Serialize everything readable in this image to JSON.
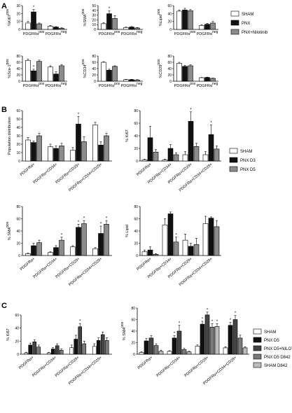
{
  "panels": {
    "A": "A",
    "B": "B",
    "C": "C"
  },
  "colors": {
    "black": "#111111",
    "white": "#ffffff",
    "gray": "#8c8c8c",
    "dark_gray": "#444444",
    "mid_gray": "#7a7a7a",
    "light_gray": "#bdbdbd"
  },
  "legends": {
    "A": [
      "SHAM",
      "PNX",
      "PNX+Nilotinib"
    ],
    "B": [
      "SHAM",
      "PNX D3",
      "PNX D5"
    ],
    "C": [
      "SHAM",
      "PNX D5",
      "PNX D5+NILOTINIB",
      "PNX D5 D842",
      "SHAM D842"
    ]
  },
  "chart_data": [
    {
      "panel": "A",
      "type": "bar",
      "ylabel": "%Ki67pos",
      "ylim": [
        0,
        30
      ],
      "yticks": [
        0,
        10,
        20,
        30
      ],
      "categories": [
        "PDGFRαpos",
        "PDGFRαneg"
      ],
      "series": [
        {
          "name": "SHAM",
          "values": [
            8,
            4
          ]
        },
        {
          "name": "PNX",
          "values": [
            22,
            3
          ]
        },
        {
          "name": "PNX+Nilotinib",
          "values": [
            7,
            1.5
          ]
        }
      ],
      "errors": [
        [
          2,
          1
        ],
        [
          3,
          0.5
        ],
        [
          1,
          0.5
        ]
      ],
      "stars": [
        [
          0,
          1
        ]
      ]
    },
    {
      "panel": "A",
      "type": "bar",
      "ylabel": "%SMApos",
      "ylim": [
        0,
        50
      ],
      "yticks": [
        0,
        10,
        20,
        30,
        40,
        50
      ],
      "categories": [
        "PDGFRαpos",
        "PDGFRαneg"
      ],
      "series": [
        {
          "name": "SHAM",
          "values": [
            12,
            4
          ]
        },
        {
          "name": "PNX",
          "values": [
            33,
            5
          ]
        },
        {
          "name": "PNX+Nilotinib",
          "values": [
            23,
            3
          ]
        }
      ],
      "errors": [
        [
          2,
          1
        ],
        [
          6,
          1
        ],
        [
          6,
          1
        ]
      ],
      "stars": [
        [
          0,
          1
        ]
      ]
    },
    {
      "panel": "A",
      "type": "bar",
      "ylabel": "%Lipidpos",
      "ylim": [
        0,
        60
      ],
      "yticks": [
        0,
        20,
        40,
        60
      ],
      "categories": [
        "PDGFRαpos",
        "PDGFRαneg"
      ],
      "series": [
        {
          "name": "SHAM",
          "values": [
            46,
            10
          ]
        },
        {
          "name": "PNX",
          "values": [
            49,
            13
          ]
        },
        {
          "name": "PNX+Nilotinib",
          "values": [
            47,
            16
          ]
        }
      ],
      "errors": [
        [
          3,
          2
        ],
        [
          4,
          2
        ],
        [
          3,
          4
        ]
      ],
      "stars": []
    },
    {
      "panel": "A",
      "type": "bar",
      "ylabel": "%Sca-1pos",
      "ylim": [
        0,
        80
      ],
      "yticks": [
        0,
        20,
        40,
        60,
        80
      ],
      "categories": [
        "PDGFRαpos",
        "PDGFRαneg"
      ],
      "series": [
        {
          "name": "SHAM",
          "values": [
            66,
            45
          ]
        },
        {
          "name": "PNX",
          "values": [
            33,
            23
          ]
        },
        {
          "name": "PNX+Nilotinib",
          "values": [
            63,
            49
          ]
        }
      ],
      "errors": [
        [
          4,
          4
        ],
        [
          5,
          7
        ],
        [
          4,
          4
        ]
      ],
      "stars": [
        [
          0,
          1
        ]
      ]
    },
    {
      "panel": "A",
      "type": "bar",
      "ylabel": "%CD34pos",
      "ylim": [
        0,
        80
      ],
      "yticks": [
        0,
        20,
        40,
        60,
        80
      ],
      "categories": [
        "PDGFRαpos",
        "PDGFRαneg"
      ],
      "series": [
        {
          "name": "SHAM",
          "values": [
            60,
            5
          ]
        },
        {
          "name": "PNX",
          "values": [
            35,
            5
          ]
        },
        {
          "name": "PNX+Nilotinib",
          "values": [
            47,
            4
          ]
        }
      ],
      "errors": [
        [
          2,
          1
        ],
        [
          3,
          1
        ],
        [
          2,
          1
        ]
      ],
      "stars": []
    },
    {
      "panel": "A",
      "type": "bar",
      "ylabel": "%CD29pos",
      "ylim": [
        0,
        80
      ],
      "yticks": [
        0,
        20,
        40,
        60,
        80
      ],
      "categories": [
        "PDGFRαpos",
        "PDGFRαneg"
      ],
      "series": [
        {
          "name": "SHAM",
          "values": [
            57,
            11
          ]
        },
        {
          "name": "PNX",
          "values": [
            47,
            12
          ]
        },
        {
          "name": "PNX+Nilotinib",
          "values": [
            49,
            9
          ]
        }
      ],
      "errors": [
        [
          3,
          1
        ],
        [
          3,
          1
        ],
        [
          3,
          1
        ]
      ],
      "stars": []
    },
    {
      "panel": "B",
      "type": "bar",
      "ylabel": "Population distribution",
      "ylim": [
        0,
        60
      ],
      "yticks": [
        0,
        10,
        20,
        30,
        40,
        50,
        60
      ],
      "categories": [
        "PDGFRα+",
        "PDGFRα+CD34+",
        "PDGFRα+CD29+",
        "PDGFRα+CD34+CD29+"
      ],
      "series": [
        {
          "name": "SHAM",
          "values": [
            25,
            17,
            13,
            43
          ]
        },
        {
          "name": "PNX D3",
          "values": [
            22,
            15,
            44,
            19
          ]
        },
        {
          "name": "PNX D5",
          "values": [
            30,
            18,
            23,
            30
          ]
        }
      ],
      "errors": [
        [
          3,
          3,
          3,
          3
        ],
        [
          2,
          3,
          9,
          4
        ],
        [
          3,
          3,
          6,
          3
        ]
      ],
      "stars": [
        [
          2,
          1
        ]
      ]
    },
    {
      "panel": "B",
      "type": "bar",
      "ylabel": "% Ki67",
      "ylim": [
        0,
        80
      ],
      "yticks": [
        0,
        20,
        40,
        60,
        80
      ],
      "categories": [
        "PDGFRα+",
        "PDGFRα+CD34+",
        "PDGFRα+CD29+",
        "PDGFRα+CD34+CD29+"
      ],
      "series": [
        {
          "name": "SHAM",
          "values": [
            2,
            2,
            10,
            10
          ]
        },
        {
          "name": "PNX D3",
          "values": [
            37,
            20,
            63,
            42
          ]
        },
        {
          "name": "PNX D5",
          "values": [
            14,
            10,
            23,
            19
          ]
        }
      ],
      "errors": [
        [
          1,
          1,
          5,
          5
        ],
        [
          18,
          6,
          15,
          15
        ],
        [
          4,
          3,
          5,
          5
        ]
      ],
      "stars": [
        [
          2,
          1
        ],
        [
          3,
          1
        ]
      ]
    },
    {
      "panel": "B",
      "type": "bar",
      "ylabel": "% SMApos",
      "ylim": [
        0,
        80
      ],
      "yticks": [
        0,
        20,
        40,
        60,
        80
      ],
      "categories": [
        "PDGFRα+",
        "PDGFRα+CD34+",
        "PDGFRα+CD29+",
        "PDGFRα+CD34+CD29+"
      ],
      "series": [
        {
          "name": "SHAM",
          "values": [
            3,
            5,
            14,
            11
          ]
        },
        {
          "name": "PNX D3",
          "values": [
            16,
            13,
            46,
            36
          ]
        },
        {
          "name": "PNX D5",
          "values": [
            21,
            25,
            52,
            51
          ]
        }
      ],
      "errors": [
        [
          1,
          1,
          2,
          2
        ],
        [
          4,
          3,
          5,
          12
        ],
        [
          4,
          5,
          5,
          6
        ]
      ],
      "stars": [
        [
          1,
          2
        ],
        [
          2,
          1
        ],
        [
          2,
          2
        ],
        [
          3,
          1
        ],
        [
          3,
          2
        ]
      ]
    },
    {
      "panel": "B",
      "type": "bar",
      "ylabel": "% Lipid",
      "ylim": [
        0,
        80
      ],
      "yticks": [
        0,
        20,
        40,
        60,
        80
      ],
      "categories": [
        "PDGFRα+",
        "PDGFRα+CD34+",
        "PDGFRα+CD29+",
        "PDGFRα+CD34+CD29+"
      ],
      "series": [
        {
          "name": "SHAM",
          "values": [
            6,
            50,
            25,
            52
          ]
        },
        {
          "name": "PNX D3",
          "values": [
            9,
            68,
            15,
            61
          ]
        },
        {
          "name": "PNX D5",
          "values": [
            2,
            22,
            18,
            47
          ]
        }
      ],
      "errors": [
        [
          3,
          10,
          10,
          12
        ],
        [
          5,
          3,
          5,
          2
        ],
        [
          1,
          8,
          10,
          10
        ]
      ],
      "stars": [
        [
          1,
          2
        ]
      ]
    },
    {
      "panel": "C",
      "type": "bar",
      "ylabel": "% Ki67",
      "ylim": [
        0,
        60
      ],
      "yticks": [
        0,
        20,
        40,
        60
      ],
      "categories": [
        "PDGFRα+",
        "PDGFRα+CD34+",
        "PDGFRα+CD29+",
        "PDGFRα+CD34+CD29+"
      ],
      "series": [
        {
          "name": "SHAM",
          "values": [
            2,
            2,
            10,
            12
          ]
        },
        {
          "name": "PNX D5",
          "values": [
            14,
            8,
            23,
            21
          ]
        },
        {
          "name": "PNX D5+NILOTINIB",
          "values": [
            19,
            13,
            42,
            30
          ]
        },
        {
          "name": "PNX D5 D842",
          "values": [
            11,
            6,
            16,
            21
          ]
        }
      ],
      "errors": [
        [
          1,
          1,
          4,
          4
        ],
        [
          3,
          2,
          6,
          4
        ],
        [
          3,
          3,
          5,
          4
        ],
        [
          3,
          2,
          4,
          4
        ]
      ],
      "stars": [
        [
          2,
          2
        ]
      ]
    },
    {
      "panel": "C",
      "type": "bar",
      "ylabel": "% SMApos",
      "ylim": [
        0,
        80
      ],
      "yticks": [
        0,
        20,
        40,
        60,
        80
      ],
      "categories": [
        "PDGFRα+",
        "PDGFRα+CD34+",
        "PDGFRα+CD29+",
        "PDGFRα+CD34+CD29+"
      ],
      "series": [
        {
          "name": "SHAM",
          "values": [
            3,
            5,
            14,
            11
          ]
        },
        {
          "name": "PNX D5",
          "values": [
            23,
            28,
            52,
            50
          ]
        },
        {
          "name": "PNX D5+NILOTINIB",
          "values": [
            28,
            40,
            68,
            60
          ]
        },
        {
          "name": "PNX D5 D842",
          "values": [
            15,
            8,
            47,
            28
          ]
        },
        {
          "name": "SHAM D842",
          "values": [
            5,
            4,
            48,
            11
          ]
        }
      ],
      "errors": [
        [
          1,
          1,
          2,
          2
        ],
        [
          4,
          4,
          5,
          5
        ],
        [
          4,
          10,
          5,
          7
        ],
        [
          3,
          2,
          6,
          5
        ],
        [
          2,
          1,
          5,
          2
        ]
      ],
      "stars": [
        [
          1,
          1
        ],
        [
          1,
          2
        ],
        [
          2,
          1
        ],
        [
          2,
          2
        ],
        [
          2,
          3
        ],
        [
          2,
          4
        ],
        [
          3,
          1
        ],
        [
          3,
          2
        ]
      ]
    }
  ]
}
